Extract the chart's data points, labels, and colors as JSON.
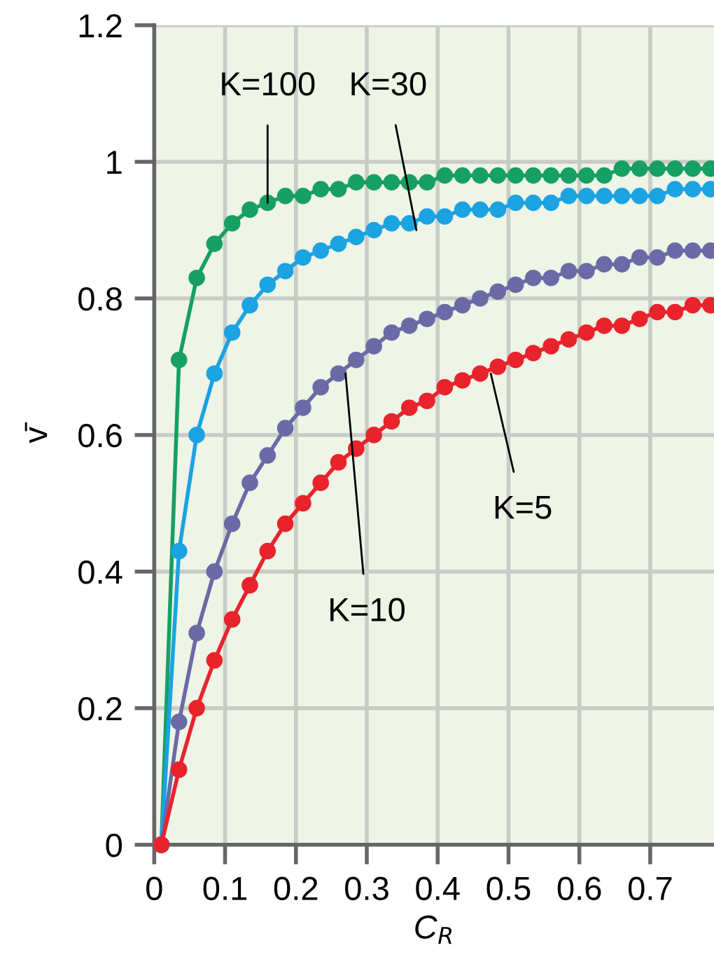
{
  "chart_data": {
    "type": "line",
    "xlabel": "C$_{R}$",
    "ylabel": "v̄",
    "x": [
      0.01,
      0.035,
      0.06,
      0.085,
      0.11,
      0.135,
      0.16,
      0.185,
      0.21,
      0.235,
      0.26,
      0.285,
      0.31,
      0.335,
      0.36,
      0.385,
      0.41,
      0.435,
      0.46,
      0.485,
      0.51,
      0.535,
      0.56,
      0.585,
      0.61,
      0.635,
      0.66,
      0.685,
      0.71,
      0.735,
      0.76,
      0.785
    ],
    "series": [
      {
        "color": "#16a063",
        "values": [
          0,
          0.71,
          0.83,
          0.88,
          0.91,
          0.93,
          0.94,
          0.95,
          0.95,
          0.96,
          0.96,
          0.97,
          0.97,
          0.97,
          0.97,
          0.97,
          0.98,
          0.98,
          0.98,
          0.98,
          0.98,
          0.98,
          0.98,
          0.98,
          0.98,
          0.98,
          0.99,
          0.99,
          0.99,
          0.99,
          0.99,
          0.99
        ]
      },
      {
        "color": "#1ba3e2",
        "values": [
          0,
          0.43,
          0.6,
          0.69,
          0.75,
          0.79,
          0.82,
          0.84,
          0.86,
          0.87,
          0.88,
          0.89,
          0.9,
          0.91,
          0.91,
          0.92,
          0.92,
          0.93,
          0.93,
          0.93,
          0.94,
          0.94,
          0.94,
          0.95,
          0.95,
          0.95,
          0.95,
          0.95,
          0.95,
          0.96,
          0.96,
          0.96
        ]
      },
      {
        "color": "#6b6aa6",
        "values": [
          0,
          0.18,
          0.31,
          0.4,
          0.47,
          0.53,
          0.57,
          0.61,
          0.64,
          0.67,
          0.69,
          0.71,
          0.73,
          0.75,
          0.76,
          0.77,
          0.78,
          0.79,
          0.8,
          0.81,
          0.82,
          0.83,
          0.83,
          0.84,
          0.84,
          0.85,
          0.85,
          0.86,
          0.86,
          0.87,
          0.87,
          0.87
        ]
      },
      {
        "color": "#e8232b",
        "values": [
          0,
          0.11,
          0.2,
          0.27,
          0.33,
          0.38,
          0.43,
          0.47,
          0.5,
          0.53,
          0.56,
          0.58,
          0.6,
          0.62,
          0.64,
          0.65,
          0.67,
          0.68,
          0.69,
          0.7,
          0.71,
          0.72,
          0.73,
          0.74,
          0.75,
          0.76,
          0.76,
          0.77,
          0.78,
          0.78,
          0.79,
          0.79
        ]
      }
    ],
    "annotations": [
      {
        "text": "K=100",
        "x": 0.16,
        "y": 0.94
      },
      {
        "text": "K=30",
        "x": 0.37,
        "y": 0.9
      },
      {
        "text": "K=10",
        "x": 0.27,
        "y": 0.69
      },
      {
        "text": "K=5",
        "x": 0.475,
        "y": 0.69
      }
    ],
    "xlim": [
      0,
      0.79
    ],
    "ylim": [
      0,
      1.2
    ],
    "xticks": [
      0,
      0.1,
      0.2,
      0.3,
      0.4,
      0.5,
      0.6,
      0.7
    ],
    "yticks": [
      0,
      0.2,
      0.4,
      0.6,
      0.8,
      1,
      1.2
    ],
    "grid": true,
    "marker": "circle",
    "line_style": "solid"
  }
}
